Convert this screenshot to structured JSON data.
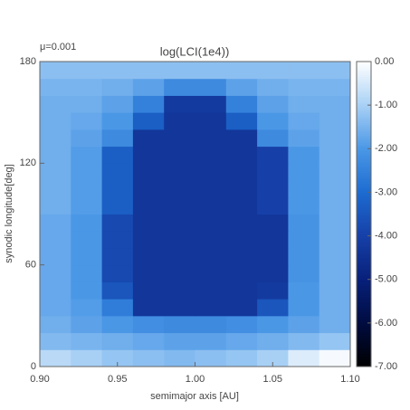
{
  "chart_data": {
    "type": "heatmap",
    "title": "log(LCI(1e4))",
    "annotation": "μ=0.001",
    "x_label": "semimajor axis [AU]",
    "y_label": "synodic longitude[deg]",
    "x": [
      0.91,
      0.93,
      0.95,
      0.97,
      0.99,
      1.01,
      1.03,
      1.05,
      1.07,
      1.09
    ],
    "y": [
      5,
      15,
      25,
      35,
      45,
      55,
      65,
      75,
      85,
      95,
      105,
      115,
      125,
      135,
      145,
      155,
      165,
      175
    ],
    "z": [
      [
        -0.8,
        -1.0,
        -1.2,
        -1.3,
        -1.4,
        -1.3,
        -1.2,
        -1.0,
        -0.4,
        -0.1
      ],
      [
        -1.4,
        -1.5,
        -1.6,
        -1.7,
        -1.8,
        -1.8,
        -1.7,
        -1.6,
        -1.4,
        -1.2
      ],
      [
        -1.6,
        -1.8,
        -2.0,
        -2.2,
        -2.3,
        -2.3,
        -2.2,
        -2.0,
        -1.8,
        -1.6
      ],
      [
        -1.7,
        -1.9,
        -2.6,
        -4.3,
        -4.3,
        -4.3,
        -4.3,
        -3.5,
        -2.0,
        -1.6
      ],
      [
        -1.7,
        -2.0,
        -3.5,
        -4.3,
        -4.3,
        -4.3,
        -4.3,
        -4.2,
        -2.0,
        -1.6
      ],
      [
        -1.7,
        -2.0,
        -3.8,
        -4.3,
        -4.3,
        -4.3,
        -4.3,
        -4.3,
        -2.1,
        -1.6
      ],
      [
        -1.7,
        -2.0,
        -3.8,
        -4.3,
        -4.3,
        -4.3,
        -4.3,
        -4.3,
        -2.1,
        -1.6
      ],
      [
        -1.7,
        -2.0,
        -3.8,
        -4.3,
        -4.3,
        -4.3,
        -4.3,
        -4.3,
        -2.1,
        -1.6
      ],
      [
        -1.7,
        -2.0,
        -3.8,
        -4.3,
        -4.3,
        -4.3,
        -4.3,
        -4.3,
        -2.1,
        -1.6
      ],
      [
        -1.6,
        -1.9,
        -3.3,
        -4.3,
        -4.3,
        -4.3,
        -4.3,
        -4.0,
        -2.0,
        -1.6
      ],
      [
        -1.6,
        -1.9,
        -3.3,
        -4.3,
        -4.3,
        -4.3,
        -4.3,
        -4.0,
        -2.0,
        -1.6
      ],
      [
        -1.6,
        -1.9,
        -3.3,
        -4.3,
        -4.3,
        -4.3,
        -4.3,
        -4.0,
        -2.0,
        -1.6
      ],
      [
        -1.6,
        -1.9,
        -3.3,
        -4.3,
        -4.3,
        -4.3,
        -4.3,
        -4.0,
        -2.0,
        -1.6
      ],
      [
        -1.6,
        -1.8,
        -2.3,
        -4.3,
        -4.3,
        -4.3,
        -4.3,
        -2.3,
        -1.8,
        -1.6
      ],
      [
        -1.6,
        -1.7,
        -2.0,
        -3.3,
        -4.3,
        -4.3,
        -3.3,
        -2.0,
        -1.7,
        -1.6
      ],
      [
        -1.6,
        -1.6,
        -1.8,
        -2.5,
        -4.2,
        -4.2,
        -2.5,
        -1.8,
        -1.6,
        -1.6
      ],
      [
        -1.5,
        -1.5,
        -1.6,
        -1.8,
        -2.3,
        -2.3,
        -1.8,
        -1.6,
        -1.5,
        -1.5
      ],
      [
        -1.3,
        -1.3,
        -1.3,
        -1.3,
        -1.3,
        -1.3,
        -1.3,
        -1.3,
        -1.3,
        -1.3
      ]
    ],
    "xlim": [
      0.9,
      1.1
    ],
    "xticks": [
      {
        "value": 0.9,
        "label": "0.90"
      },
      {
        "value": 0.95,
        "label": "0.95"
      },
      {
        "value": 1.0,
        "label": "1.00"
      },
      {
        "value": 1.05,
        "label": "1.05"
      },
      {
        "value": 1.1,
        "label": "1.10"
      }
    ],
    "ylim": [
      0,
      180
    ],
    "yticks": [
      0,
      60,
      120,
      180
    ],
    "zlim": [
      -7,
      0
    ],
    "zticks": [
      {
        "value": 0,
        "label": "0.00"
      },
      {
        "value": -1,
        "label": "-1.00"
      },
      {
        "value": -2,
        "label": "-2.00"
      },
      {
        "value": -3,
        "label": "-3.00"
      },
      {
        "value": -4,
        "label": "-4.00"
      },
      {
        "value": -5,
        "label": "-5.00"
      },
      {
        "value": -6,
        "label": "-6.00"
      },
      {
        "value": -7,
        "label": "-7.00"
      }
    ],
    "colorscale": [
      "#000000",
      "#000c40",
      "#08207a",
      "#1640a8",
      "#1d6bd0",
      "#4a97e6",
      "#a8d0f5",
      "#ffffff"
    ]
  }
}
